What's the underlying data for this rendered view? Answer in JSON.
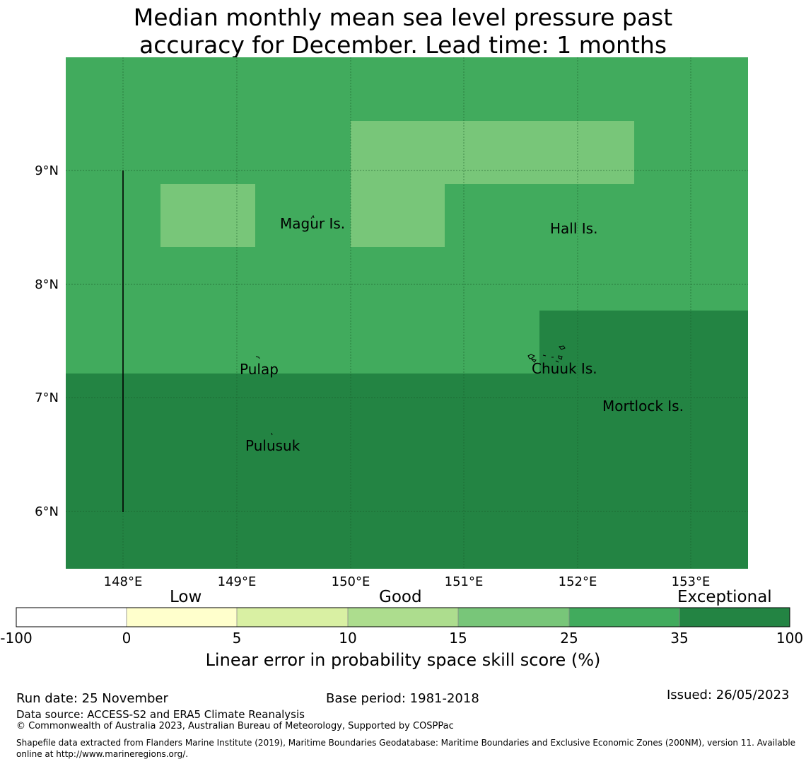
{
  "title": {
    "line1": "Median monthly mean sea level pressure past",
    "line2": "accuracy for December. Lead time: 1 months"
  },
  "map": {
    "lon_labels": [
      "148°E",
      "149°E",
      "150°E",
      "151°E",
      "152°E",
      "153°E"
    ],
    "lat_labels": [
      "9°N",
      "8°N",
      "7°N",
      "6°N"
    ],
    "places": [
      "Magur Is.",
      "Hall Is.",
      "Pulap",
      "Chuuk Is.",
      "Mortlock Is.",
      "Pulusuk"
    ]
  },
  "legend": {
    "categories": [
      "Low",
      "Good",
      "Exceptional"
    ],
    "ticks": [
      "-100",
      "0",
      "5",
      "10",
      "15",
      "25",
      "35",
      "100"
    ],
    "colors": [
      "#ffffff",
      "#ffffcc",
      "#d9f0a3",
      "#addd8e",
      "#78c679",
      "#41ab5d",
      "#238443"
    ],
    "label": "Linear error in probability space skill score (%)"
  },
  "footer": {
    "run_date": "Run date: 25 November",
    "base_period": "Base period: 1981-2018",
    "issued": "Issued: 26/05/2023",
    "data_source": "Data source: ACCESS-S2 and ERA5 Climate Reanalysis",
    "copyright": "© Commonwealth of Australia 2023, Australian Bureau of Meteorology, Supported by COSPPac",
    "shapefile": "Shapefile data extracted from Flanders Marine Institute (2019), Maritime Boundaries Geodatabase: Maritime Boundaries and Exclusive Economic Zones (200NM), version 11. Available online at http://www.marineregions.org/."
  }
}
